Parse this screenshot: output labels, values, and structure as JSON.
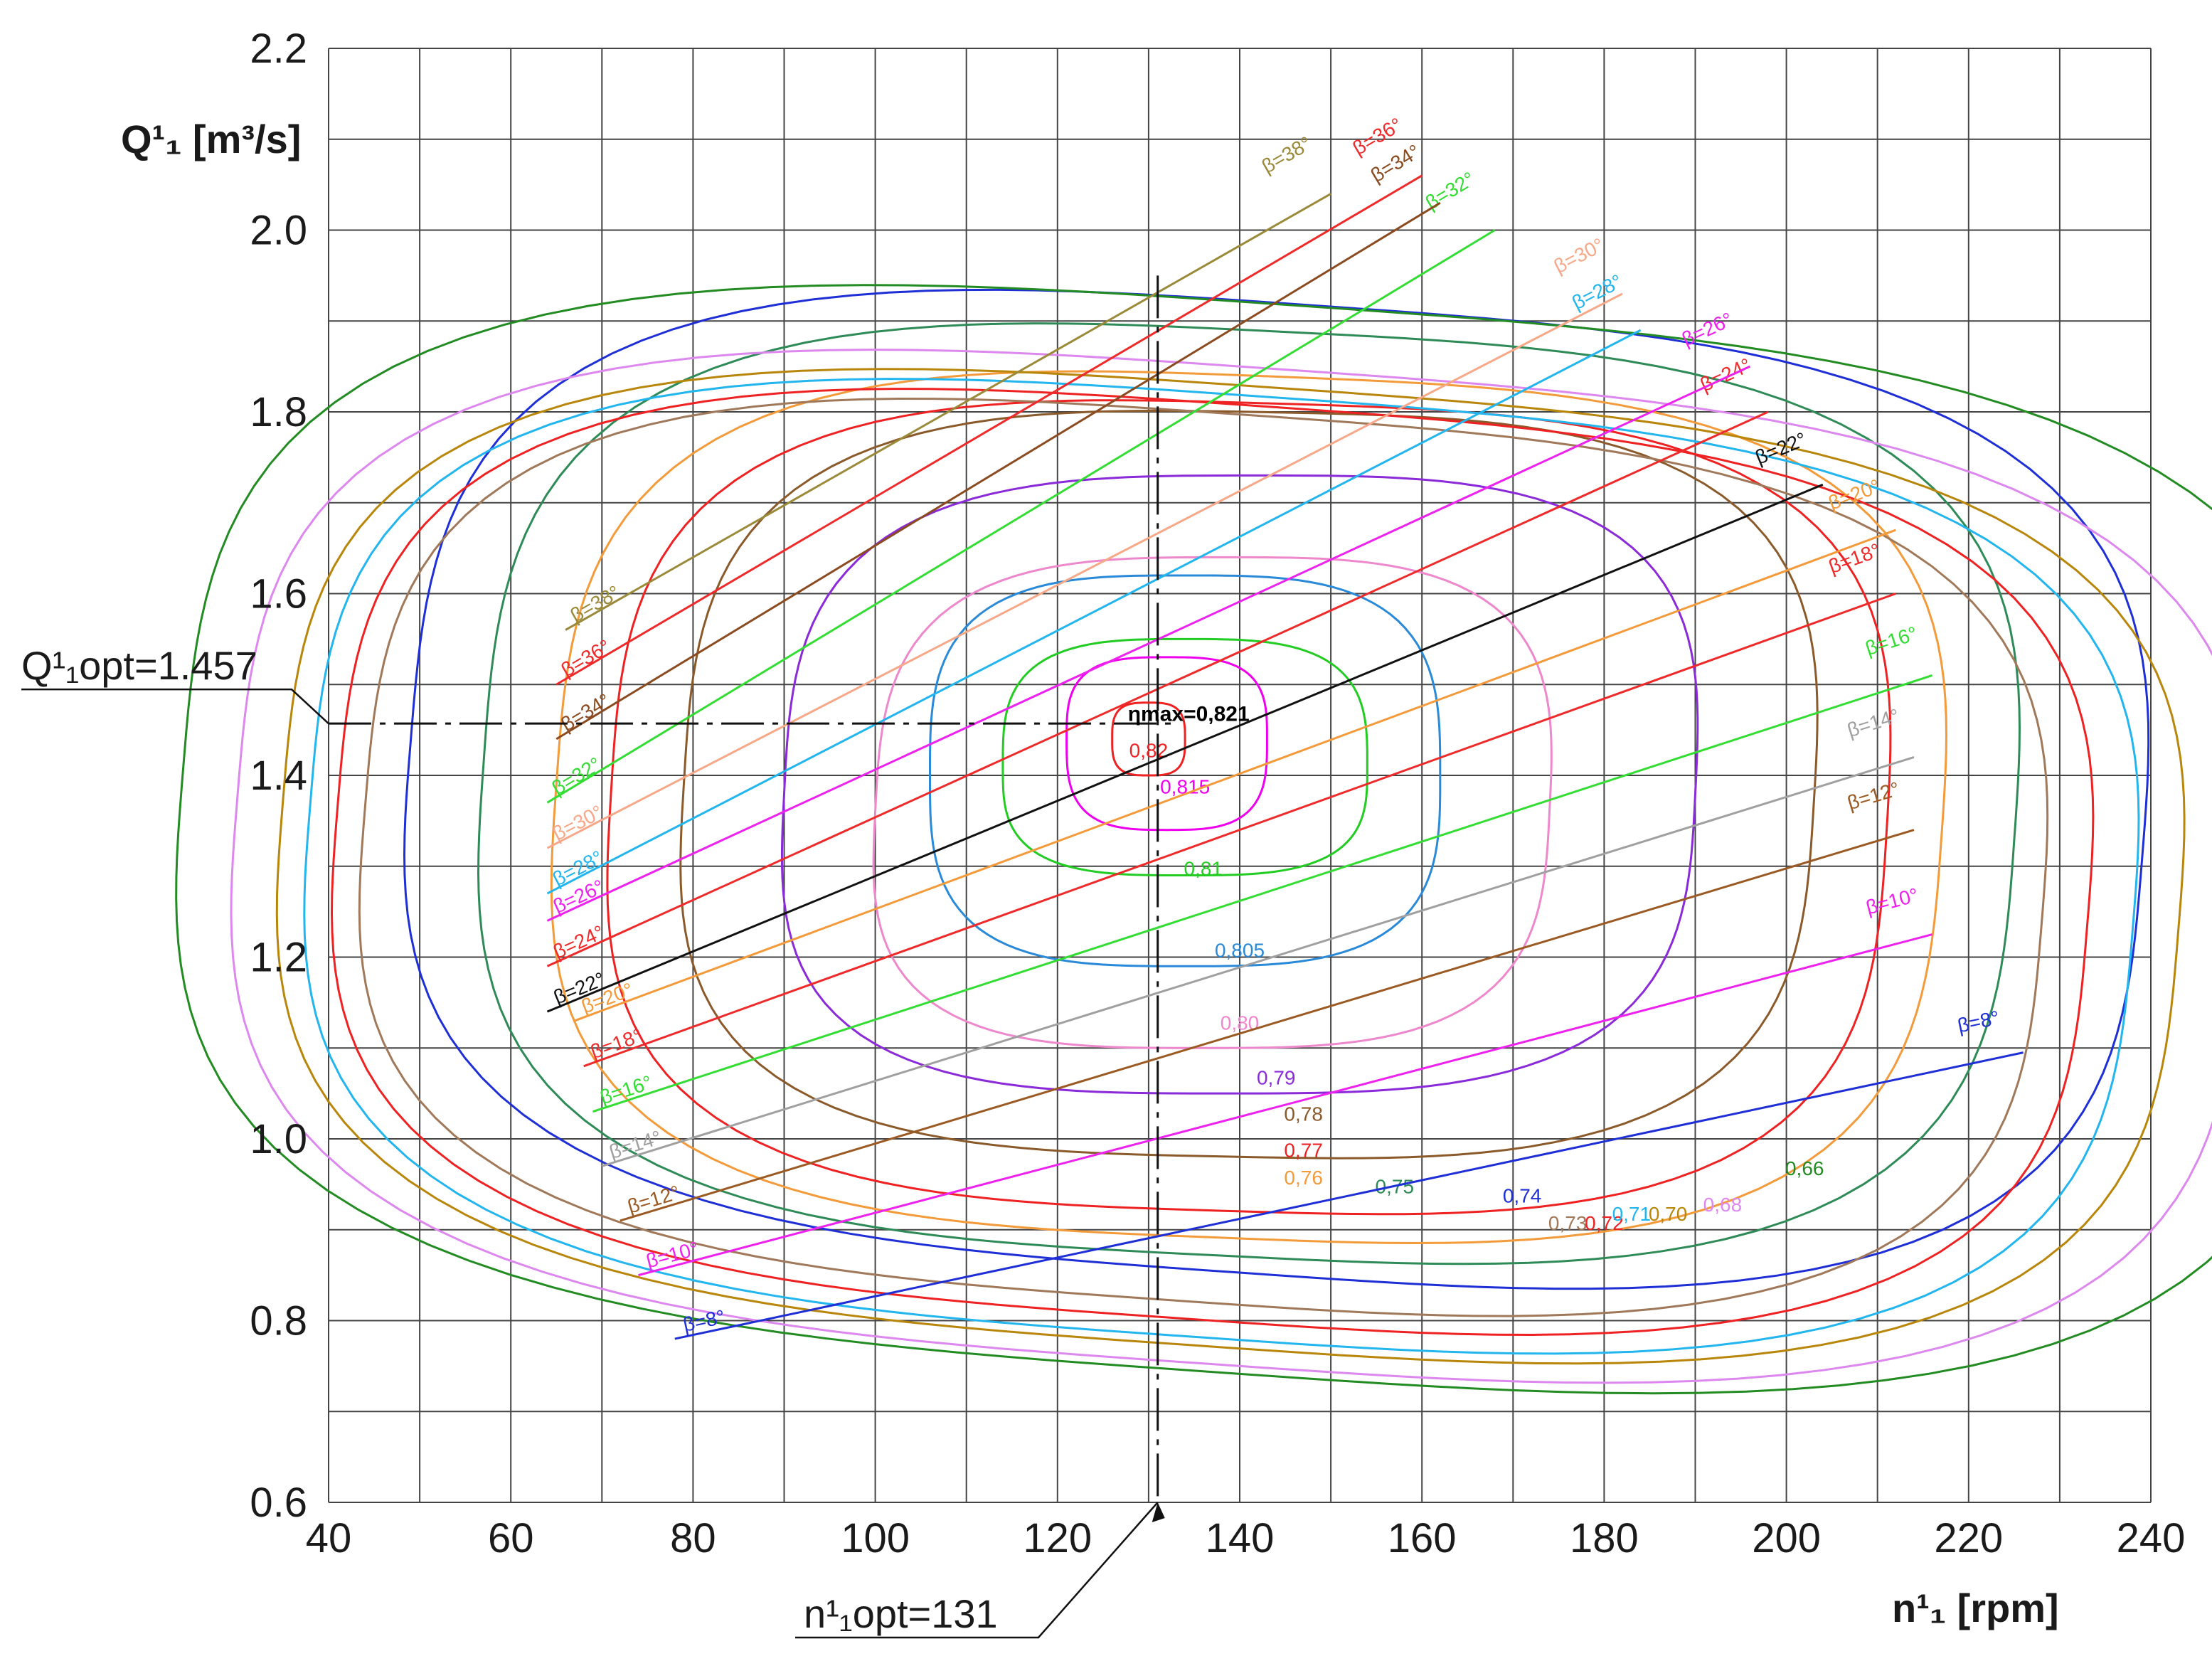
{
  "chart_data": {
    "type": "line",
    "title": "",
    "xlabel": "n¹₁ [rpm]",
    "ylabel": "Q¹₁ [m³/s]",
    "xlim": [
      40,
      240
    ],
    "ylim": [
      0.6,
      2.2
    ],
    "grid": true,
    "x_ticks": [
      "40",
      "60",
      "80",
      "100",
      "120",
      "140",
      "160",
      "180",
      "200",
      "220",
      "240"
    ],
    "y_ticks": [
      "0.6",
      "0.8",
      "1.0",
      "1.2",
      "1.4",
      "1.6",
      "1.8",
      "2.0",
      "2.2"
    ],
    "optimum": {
      "n_opt": 131,
      "q_opt": 1.457,
      "n_label": "n¹₁opt=131",
      "q_label": "Q¹₁opt=1.457",
      "eta_max_label": "ηmax=0,821"
    },
    "blade_angle_lines": [
      {
        "label": "β=8°",
        "color": "#1f2fd6",
        "p1": [
          78,
          0.78
        ],
        "p2": [
          226,
          1.095
        ]
      },
      {
        "label": "β=10°",
        "color": "#ee22ee",
        "p1": [
          74,
          0.85
        ],
        "p2": [
          216,
          1.225
        ]
      },
      {
        "label": "β=12°",
        "color": "#9b5a23",
        "p1": [
          72,
          0.91
        ],
        "p2": [
          214,
          1.34
        ]
      },
      {
        "label": "β=14°",
        "color": "#a0a0a0",
        "p1": [
          70,
          0.97
        ],
        "p2": [
          214,
          1.42
        ]
      },
      {
        "label": "β=16°",
        "color": "#33dd33",
        "p1": [
          69,
          1.03
        ],
        "p2": [
          216,
          1.51
        ]
      },
      {
        "label": "β=18°",
        "color": "#ee2a2a",
        "p1": [
          68,
          1.08
        ],
        "p2": [
          212,
          1.6
        ]
      },
      {
        "label": "β=20°",
        "color": "#f39a3a",
        "p1": [
          67,
          1.13
        ],
        "p2": [
          212,
          1.67
        ]
      },
      {
        "label": "β=22°",
        "color": "#111111",
        "p1": [
          64,
          1.14
        ],
        "p2": [
          204,
          1.72
        ]
      },
      {
        "label": "β=24°",
        "color": "#ee2a2a",
        "p1": [
          64,
          1.19
        ],
        "p2": [
          198,
          1.8
        ]
      },
      {
        "label": "β=26°",
        "color": "#ee22ee",
        "p1": [
          64,
          1.24
        ],
        "p2": [
          196,
          1.85
        ]
      },
      {
        "label": "β=28°",
        "color": "#22b5ee",
        "p1": [
          64,
          1.27
        ],
        "p2": [
          184,
          1.89
        ]
      },
      {
        "label": "β=30°",
        "color": "#f6a888",
        "p1": [
          64,
          1.32
        ],
        "p2": [
          182,
          1.93
        ]
      },
      {
        "label": "β=32°",
        "color": "#33dd33",
        "p1": [
          64,
          1.37
        ],
        "p2": [
          168,
          2.0
        ]
      },
      {
        "label": "β=34°",
        "color": "#8b4b20",
        "p1": [
          65,
          1.44
        ],
        "p2": [
          162,
          2.03
        ]
      },
      {
        "label": "β=36°",
        "color": "#ee2a2a",
        "p1": [
          65,
          1.5
        ],
        "p2": [
          160,
          2.06
        ]
      },
      {
        "label": "β=38°",
        "color": "#9a8a3a",
        "p1": [
          66,
          1.56
        ],
        "p2": [
          150,
          2.04
        ]
      }
    ],
    "efficiency_contours": [
      {
        "label": "0,82",
        "color": "#ee2222",
        "cx": 130,
        "cy": 1.44,
        "rx": 4,
        "ry_top": 0.04,
        "ry_bot": 0.04,
        "tilt": 0,
        "skew": 0,
        "label_at": [
          130,
          1.42
        ]
      },
      {
        "label": "0,815",
        "color": "#ee00ee",
        "cx": 132,
        "cy": 1.44,
        "rx": 11,
        "ry_top": 0.09,
        "ry_bot": 0.1,
        "tilt": 0,
        "skew": 0,
        "label_at": [
          134,
          1.38
        ]
      },
      {
        "label": "0,81",
        "color": "#22cc22",
        "cx": 134,
        "cy": 1.41,
        "rx": 20,
        "ry_top": 0.14,
        "ry_bot": 0.12,
        "tilt": 0,
        "skew": 0,
        "label_at": [
          136,
          1.29
        ]
      },
      {
        "label": "0,805",
        "color": "#2a8ad8",
        "cx": 134,
        "cy": 1.4,
        "rx": 28,
        "ry_top": 0.22,
        "ry_bot": 0.21,
        "tilt": 0,
        "skew": 0,
        "label_at": [
          140,
          1.2
        ]
      },
      {
        "label": "0,80",
        "color": "#ee88cc",
        "cx": 137,
        "cy": 1.36,
        "rx": 37,
        "ry_top": 0.28,
        "ry_bot": 0.26,
        "tilt": 0,
        "skew": 0.05,
        "label_at": [
          140,
          1.12
        ]
      },
      {
        "label": "0,79",
        "color": "#8a2ad8",
        "cx": 140,
        "cy": 1.38,
        "rx": 50,
        "ry_top": 0.35,
        "ry_bot": 0.33,
        "tilt": 0,
        "skew": 0.05,
        "label_at": [
          144,
          1.06
        ]
      },
      {
        "label": "0,78",
        "color": "#8b5a2b",
        "cx": 141,
        "cy": 1.38,
        "rx": 62,
        "ry_top": 0.42,
        "ry_bot": 0.4,
        "tilt": -0.02,
        "skew": 0.06,
        "label_at": [
          147,
          1.02
        ]
      },
      {
        "label": "0,77",
        "color": "#ee2222",
        "cx": 141,
        "cy": 1.36,
        "rx": 70,
        "ry_top": 0.45,
        "ry_bot": 0.44,
        "tilt": -0.03,
        "skew": 0.06,
        "label_at": [
          147,
          0.98
        ]
      },
      {
        "label": "0,76",
        "color": "#f39a3a",
        "cx": 141,
        "cy": 1.36,
        "rx": 76,
        "ry_top": 0.48,
        "ry_bot": 0.47,
        "tilt": -0.04,
        "skew": 0.07,
        "label_at": [
          147,
          0.95
        ]
      },
      {
        "label": "0,75",
        "color": "#2e8b57",
        "cx": 141,
        "cy": 1.37,
        "rx": 84,
        "ry_top": 0.52,
        "ry_bot": 0.5,
        "tilt": -0.05,
        "skew": 0.07,
        "label_at": [
          157,
          0.94
        ]
      },
      {
        "label": "0,74",
        "color": "#1f2fd6",
        "cx": 144,
        "cy": 1.37,
        "rx": 95,
        "ry_top": 0.55,
        "ry_bot": 0.52,
        "tilt": -0.07,
        "skew": 0.08,
        "label_at": [
          171,
          0.93
        ]
      },
      {
        "label": "0,73",
        "color": "#a0785a",
        "cx": 136,
        "cy": 1.3,
        "rx": 92,
        "ry_top": 0.5,
        "ry_bot": 0.48,
        "tilt": -0.07,
        "skew": 0.08,
        "label_at": [
          176,
          0.9
        ]
      },
      {
        "label": "0,72",
        "color": "#ee2222",
        "cx": 137,
        "cy": 1.3,
        "rx": 96,
        "ry_top": 0.51,
        "ry_bot": 0.5,
        "tilt": -0.07,
        "skew": 0.08,
        "label_at": [
          180,
          0.9
        ]
      },
      {
        "label": "0,71",
        "color": "#22b5ee",
        "cx": 138,
        "cy": 1.3,
        "rx": 100,
        "ry_top": 0.52,
        "ry_bot": 0.52,
        "tilt": -0.07,
        "skew": 0.08,
        "label_at": [
          183,
          0.91
        ]
      },
      {
        "label": "0,70",
        "color": "#b8860b",
        "cx": 139,
        "cy": 1.3,
        "rx": 104,
        "ry_top": 0.53,
        "ry_bot": 0.53,
        "tilt": -0.07,
        "skew": 0.08,
        "label_at": [
          187,
          0.91
        ]
      },
      {
        "label": "0,68",
        "color": "#dd88ee",
        "cx": 140,
        "cy": 1.3,
        "rx": 110,
        "ry_top": 0.55,
        "ry_bot": 0.55,
        "tilt": -0.07,
        "skew": 0.08,
        "label_at": [
          193,
          0.92
        ]
      },
      {
        "label": "0,66",
        "color": "#228b22",
        "cx": 142,
        "cy": 1.32,
        "rx": 118,
        "ry_top": 0.6,
        "ry_bot": 0.58,
        "tilt": -0.07,
        "skew": 0.08,
        "label_at": [
          202,
          0.96
        ]
      }
    ]
  }
}
